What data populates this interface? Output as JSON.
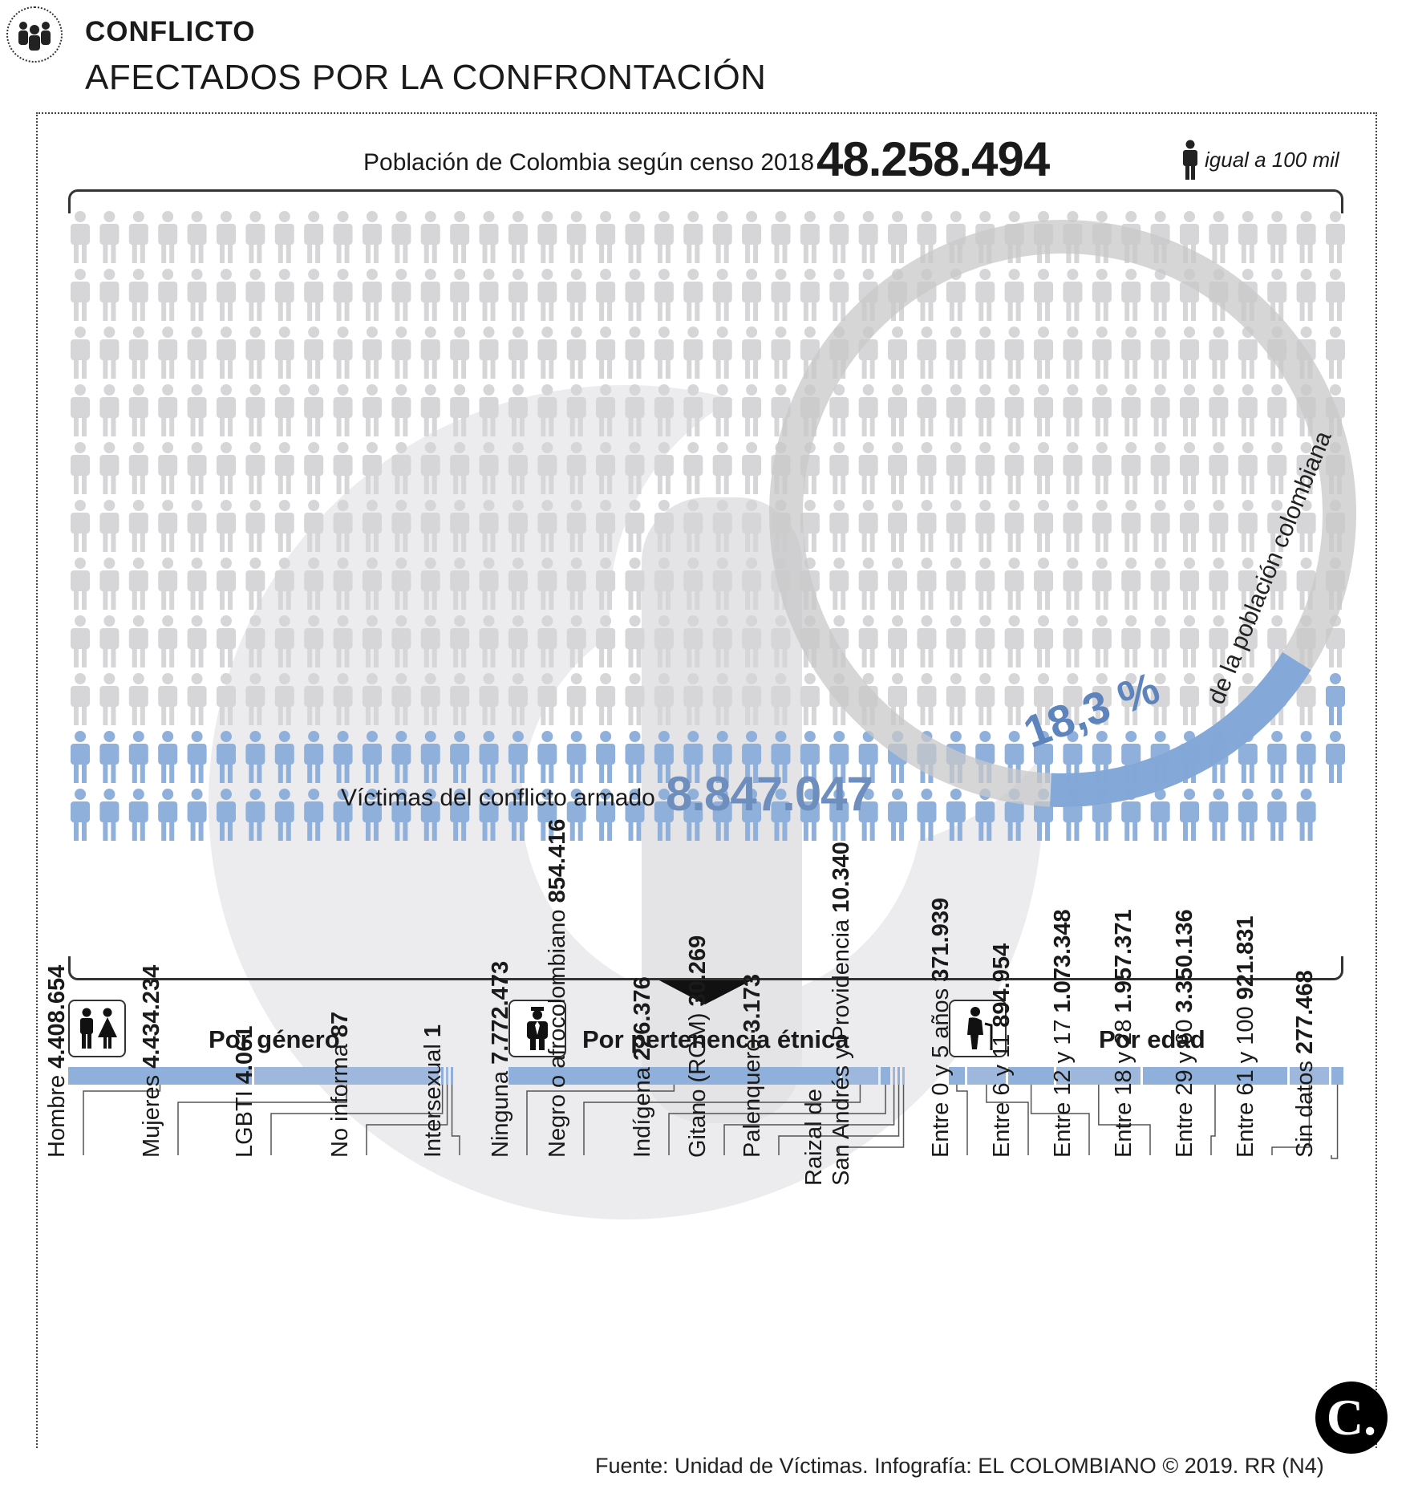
{
  "header": {
    "section": "CONFLICTO",
    "title": "AFECTADOS POR LA CONFRONTACIÓN"
  },
  "population": {
    "label": "Población de Colombia según censo 2018",
    "value": "48.258.494",
    "legend": "igual a 100 mil"
  },
  "victims": {
    "label": "Víctimas del conflicto armado",
    "value": "8.847.047",
    "percent": "18,3 %",
    "percent_text": "de la población colombiana"
  },
  "colors": {
    "gray_person": "#d6d6d8",
    "blue_person": "#8fb0db",
    "ring_gray": "#cfcfd1",
    "ring_blue": "#7fa6d8",
    "bg_logo": "#ececee"
  },
  "chart_data": {
    "type": "bar",
    "title": "Afectados por la confrontación",
    "unit_icon": "1 persona = 100 mil",
    "total_population": 48258494,
    "total_victims": 8847047,
    "percent_victims": 18.3,
    "groups": [
      {
        "title": "Por género",
        "icon": "couple-icon",
        "categories": [
          {
            "label": "Hombre",
            "value_text": "4.408.654",
            "value": 4408654
          },
          {
            "label": "Mujeres",
            "value_text": "4.434.234",
            "value": 4434234
          },
          {
            "label": "LGBTI",
            "value_text": "4.061",
            "value": 4061
          },
          {
            "label": "No informa",
            "value_text": "87",
            "value": 87
          },
          {
            "label": "Intersexual",
            "value_text": "1",
            "value": 1
          }
        ]
      },
      {
        "title": "Por pertenencia étnica",
        "icon": "person-suit-icon",
        "categories": [
          {
            "label": "Ninguna",
            "value_text": "7.772.473",
            "value": 7772473
          },
          {
            "label": "Negro o afrocolombiano",
            "value_text": "854.416",
            "value": 854416
          },
          {
            "label": "Indígena",
            "value_text": "226.376",
            "value": 226376
          },
          {
            "label": "Gitano (ROM)",
            "value_text": "30.269",
            "value": 30269
          },
          {
            "label": "Palenquero",
            "value_text": "3.173",
            "value": 3173
          },
          {
            "label": "Raizal de",
            "label2": "San Andrés y Providencia",
            "value_text": "10.340",
            "value": 10340
          }
        ]
      },
      {
        "title": "Por edad",
        "icon": "elderly-icon",
        "categories": [
          {
            "label": "Entre 0 y 5 años",
            "value_text": "371.939",
            "value": 371939
          },
          {
            "label": "Entre 6 y 11",
            "value_text": "894.954",
            "value": 894954
          },
          {
            "label": "Entre 12 y 17",
            "value_text": "1.073.348",
            "value": 1073348
          },
          {
            "label": "Entre 18 y 28",
            "value_text": "1.957.371",
            "value": 1957371
          },
          {
            "label": "Entre 29 y 60",
            "value_text": "3.350.136",
            "value": 3350136
          },
          {
            "label": "Entre 61 y 100",
            "value_text": "921.831",
            "value": 921831
          },
          {
            "label": "Sin datos",
            "value_text": "277.468",
            "value": 277468
          }
        ]
      }
    ]
  },
  "footer": {
    "source": "Fuente: Unidad de Víctimas. Infografía: EL COLOMBIANO © 2019. RR (N4)",
    "logo": "C."
  }
}
